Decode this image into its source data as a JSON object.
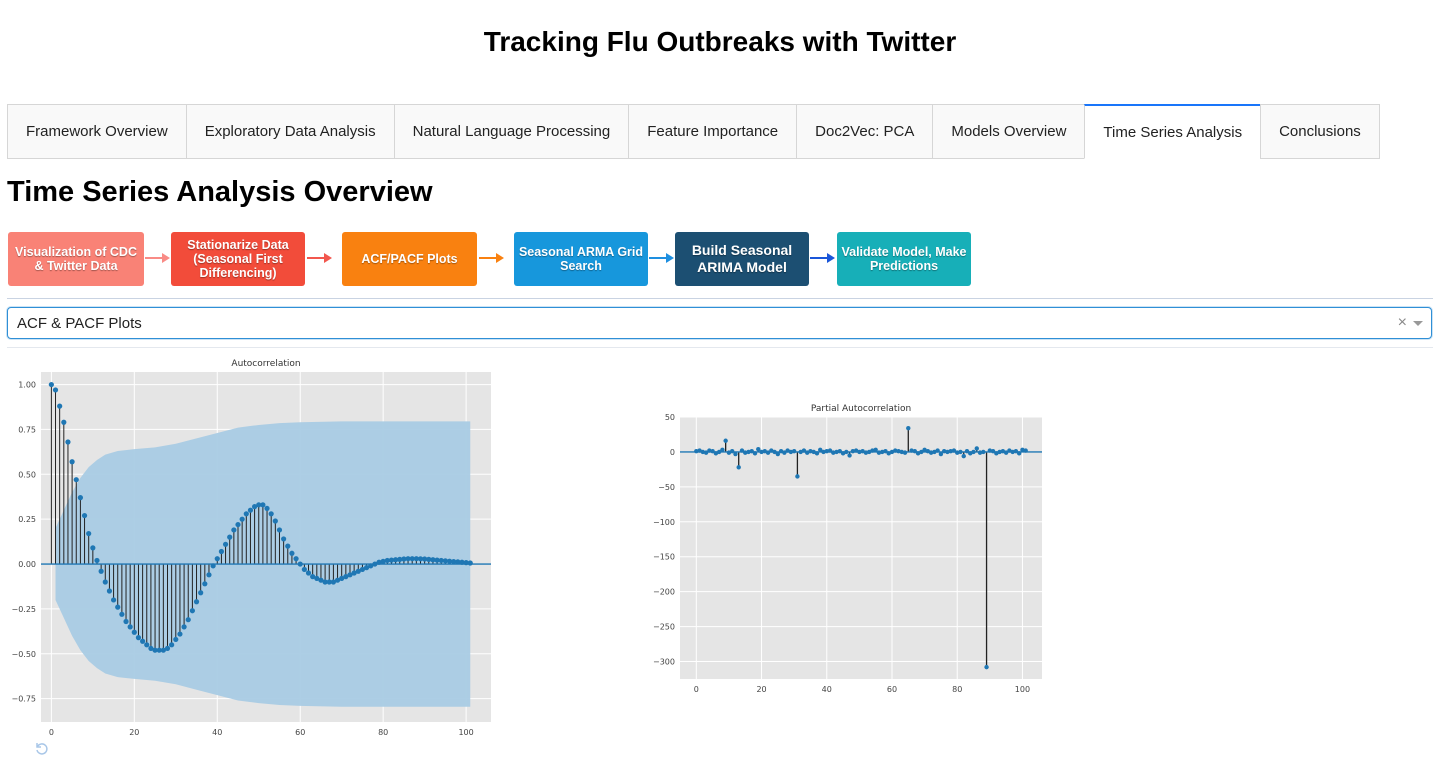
{
  "page": {
    "title": "Tracking Flu Outbreaks with Twitter"
  },
  "tabs": [
    {
      "label": "Framework Overview",
      "active": false
    },
    {
      "label": "Exploratory Data Analysis",
      "active": false
    },
    {
      "label": "Natural Language Processing",
      "active": false
    },
    {
      "label": "Feature Importance",
      "active": false
    },
    {
      "label": "Doc2Vec: PCA",
      "active": false
    },
    {
      "label": "Models Overview",
      "active": false
    },
    {
      "label": "Time Series Analysis",
      "active": true
    },
    {
      "label": "Conclusions",
      "active": false
    }
  ],
  "section": {
    "title": "Time Series Analysis Overview"
  },
  "flow": {
    "steps": [
      {
        "label": "Visualization of CDC & Twitter Data",
        "color": "#F98276"
      },
      {
        "label": "Stationarize Data (Seasonal First Differencing)",
        "color": "#F24C3A"
      },
      {
        "label": "ACF/PACF Plots",
        "color": "#F98110"
      },
      {
        "label": "Seasonal ARMA Grid Search",
        "color": "#1797DC"
      },
      {
        "label": "Build Seasonal ARIMA Model",
        "color": "#1C4F72"
      },
      {
        "label": "Validate Model, Make Predictions",
        "color": "#17AFB8"
      }
    ],
    "arrow_colors": [
      "#F98B86",
      "#F2574E",
      "#F98110",
      "#1E8FE0",
      "#1A56D9"
    ]
  },
  "dropdown": {
    "value": "ACF & PACF Plots",
    "clear_symbol": "×"
  },
  "chart_data": [
    {
      "type": "line",
      "title": "Autocorrelation",
      "xlabel": "",
      "ylabel": "",
      "xlim": [
        -2.5,
        106
      ],
      "ylim": [
        -0.88,
        1.07
      ],
      "xticks": [
        0,
        20,
        40,
        60,
        80,
        100
      ],
      "yticks": [
        -0.75,
        -0.5,
        -0.25,
        0.0,
        0.25,
        0.5,
        0.75,
        1.0
      ],
      "ytick_labels": [
        "−0.75",
        "−0.50",
        "−0.25",
        "0.00",
        "0.25",
        "0.50",
        "0.75",
        "1.00"
      ],
      "grid": true,
      "x": "lags 0..101",
      "values": [
        1.0,
        0.97,
        0.88,
        0.79,
        0.68,
        0.57,
        0.47,
        0.37,
        0.27,
        0.17,
        0.09,
        0.02,
        -0.04,
        -0.1,
        -0.15,
        -0.2,
        -0.24,
        -0.28,
        -0.32,
        -0.35,
        -0.38,
        -0.41,
        -0.43,
        -0.45,
        -0.47,
        -0.48,
        -0.48,
        -0.48,
        -0.47,
        -0.45,
        -0.42,
        -0.39,
        -0.35,
        -0.31,
        -0.26,
        -0.21,
        -0.16,
        -0.11,
        -0.06,
        -0.01,
        0.03,
        0.07,
        0.11,
        0.15,
        0.19,
        0.22,
        0.25,
        0.28,
        0.3,
        0.32,
        0.33,
        0.33,
        0.31,
        0.28,
        0.24,
        0.19,
        0.14,
        0.1,
        0.06,
        0.03,
        0.0,
        -0.03,
        -0.05,
        -0.07,
        -0.08,
        -0.09,
        -0.1,
        -0.1,
        -0.1,
        -0.09,
        -0.08,
        -0.07,
        -0.06,
        -0.05,
        -0.04,
        -0.03,
        -0.02,
        -0.01,
        0.0,
        0.01,
        0.015,
        0.02,
        0.022,
        0.024,
        0.026,
        0.028,
        0.03,
        0.03,
        0.03,
        0.029,
        0.028,
        0.026,
        0.024,
        0.022,
        0.02,
        0.018,
        0.016,
        0.014,
        0.012,
        0.01,
        0.008,
        0.006
      ],
      "confidence_band": {
        "x": [
          1,
          3,
          5,
          7,
          9,
          11,
          13,
          16,
          20,
          25,
          30,
          35,
          40,
          45,
          50,
          55,
          60,
          70,
          80,
          90,
          101
        ],
        "upper": [
          0.2,
          0.3,
          0.4,
          0.48,
          0.54,
          0.58,
          0.61,
          0.63,
          0.64,
          0.65,
          0.67,
          0.7,
          0.73,
          0.76,
          0.775,
          0.785,
          0.79,
          0.795,
          0.795,
          0.795,
          0.795
        ]
      }
    },
    {
      "type": "line",
      "title": "Partial Autocorrelation",
      "xlabel": "",
      "ylabel": "",
      "xlim": [
        -5,
        106
      ],
      "ylim": [
        -325,
        50
      ],
      "xticks": [
        0,
        20,
        40,
        60,
        80,
        100
      ],
      "yticks": [
        50,
        0,
        -50,
        -100,
        -150,
        -200,
        -250,
        -300
      ],
      "ytick_labels": [
        "50",
        "0",
        "−50",
        "−100",
        "−150",
        "−200",
        "−250",
        "−300"
      ],
      "grid": true,
      "x": "lags 0..101",
      "values": [
        1,
        2,
        0,
        -1,
        2,
        1,
        -2,
        0,
        3,
        16,
        -1,
        1,
        -3,
        -22,
        2,
        -1,
        0,
        1,
        -2,
        4,
        0,
        1,
        -1,
        2,
        0,
        -3,
        1,
        -1,
        2,
        0,
        1,
        -35,
        0,
        2,
        -1,
        1,
        0,
        -2,
        3,
        0,
        1,
        2,
        -1,
        0,
        1,
        -2,
        0,
        -5,
        1,
        2,
        0,
        1,
        -1,
        0,
        2,
        3,
        -1,
        0,
        1,
        -2,
        0,
        2,
        1,
        0,
        -1,
        34,
        2,
        1,
        -2,
        0,
        3,
        1,
        -1,
        0,
        2,
        -3,
        1,
        0,
        1,
        2,
        -1,
        0,
        -6,
        1,
        -2,
        0,
        5,
        -1,
        0,
        -308,
        2,
        1,
        -2,
        0,
        1,
        -1,
        2,
        0,
        1,
        -2,
        3,
        2
      ]
    }
  ]
}
